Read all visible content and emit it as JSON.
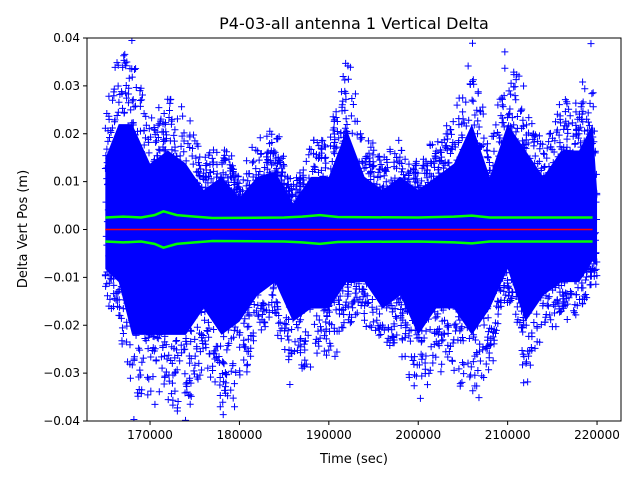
{
  "chart_data": {
    "type": "scatter",
    "title": "P4-03-all antenna 1 Vertical Delta",
    "xlabel": "Time (sec)",
    "ylabel": "Delta Vert Pos (m)",
    "xlim": [
      162950,
      222680
    ],
    "ylim": [
      -0.04,
      0.04
    ],
    "xticks": [
      170000,
      180000,
      190000,
      200000,
      210000,
      220000
    ],
    "xtick_labels": [
      "170000",
      "180000",
      "190000",
      "200000",
      "210000",
      "220000"
    ],
    "yticks": [
      -0.04,
      -0.03,
      -0.02,
      -0.01,
      0.0,
      0.01,
      0.02,
      0.03,
      0.04
    ],
    "ytick_labels": [
      "−0.04",
      "−0.03",
      "−0.02",
      "−0.01",
      "0.00",
      "0.01",
      "0.02",
      "0.03",
      "0.04"
    ],
    "grid": false,
    "series": [
      {
        "kind": "scatter-envelope",
        "marker": "+",
        "color": "#0000ff",
        "x": [
          165000,
          166500,
          168000,
          170000,
          172000,
          174000,
          176000,
          178000,
          180000,
          182000,
          184000,
          186000,
          188000,
          190000,
          192000,
          194000,
          196000,
          198000,
          200000,
          202000,
          204000,
          206000,
          208000,
          210000,
          212000,
          214000,
          216000,
          218000,
          219500,
          220000
        ],
        "upper": [
          0.027,
          0.04,
          0.04,
          0.025,
          0.03,
          0.025,
          0.015,
          0.02,
          0.012,
          0.02,
          0.022,
          0.01,
          0.02,
          0.02,
          0.038,
          0.02,
          0.015,
          0.02,
          0.015,
          0.02,
          0.025,
          0.04,
          0.02,
          0.04,
          0.03,
          0.02,
          0.03,
          0.03,
          0.04,
          0.015
        ],
        "lower": [
          -0.015,
          -0.02,
          -0.04,
          -0.04,
          -0.04,
          -0.04,
          -0.03,
          -0.04,
          -0.035,
          -0.025,
          -0.02,
          -0.035,
          -0.03,
          -0.03,
          -0.02,
          -0.02,
          -0.03,
          -0.025,
          -0.04,
          -0.03,
          -0.03,
          -0.04,
          -0.03,
          -0.015,
          -0.035,
          -0.025,
          -0.02,
          -0.02,
          -0.012,
          -0.014
        ]
      },
      {
        "kind": "line",
        "color": "#00ff00",
        "x": [
          165000,
          167000,
          169000,
          170500,
          171500,
          173000,
          175000,
          177000,
          185000,
          187000,
          189000,
          191000,
          200000,
          204000,
          206000,
          208000,
          212000,
          219500
        ],
        "y": [
          0.0025,
          0.0027,
          0.0025,
          0.003,
          0.0038,
          0.003,
          0.0027,
          0.0024,
          0.0025,
          0.0027,
          0.003,
          0.0026,
          0.0025,
          0.0027,
          0.0029,
          0.0025,
          0.0025,
          0.0025
        ]
      },
      {
        "kind": "line",
        "color": "#00ff00",
        "x": [
          165000,
          167000,
          169000,
          170500,
          171500,
          173000,
          175000,
          177000,
          185000,
          187000,
          189000,
          191000,
          200000,
          204000,
          206000,
          208000,
          212000,
          219500
        ],
        "y": [
          -0.0025,
          -0.0027,
          -0.0025,
          -0.003,
          -0.0038,
          -0.003,
          -0.0027,
          -0.0024,
          -0.0025,
          -0.0027,
          -0.003,
          -0.0026,
          -0.0025,
          -0.0027,
          -0.0029,
          -0.0025,
          -0.0025,
          -0.0025
        ]
      },
      {
        "kind": "line",
        "color": "#ff0000",
        "x": [
          165000,
          219500
        ],
        "y": [
          0.0,
          0.0
        ]
      }
    ]
  }
}
